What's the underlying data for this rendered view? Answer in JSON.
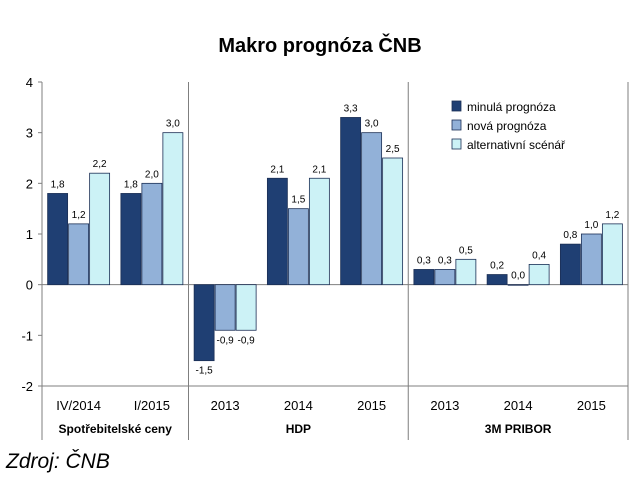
{
  "chart_data": {
    "type": "bar",
    "title": "Makro prognóza ČNB",
    "ylim": [
      -2,
      4
    ],
    "yticks": [
      "-2",
      "-1",
      "0",
      "1",
      "2",
      "3",
      "4"
    ],
    "categories": [
      "IV/2014",
      "I/2015",
      "2013",
      "2014",
      "2015",
      "2013",
      "2014",
      "2015"
    ],
    "groups": [
      {
        "label": "Spotřebitelské ceny",
        "categories": [
          0,
          1
        ]
      },
      {
        "label": "HDP",
        "categories": [
          2,
          3,
          4
        ]
      },
      {
        "label": "3M PRIBOR",
        "categories": [
          5,
          6,
          7
        ]
      }
    ],
    "series": [
      {
        "name": "minulá prognóza",
        "color": "#1f3f73",
        "values": [
          1.8,
          1.8,
          -1.5,
          2.1,
          3.3,
          0.3,
          0.2,
          0.8
        ],
        "labels": [
          "1,8",
          "1,8",
          "-1,5",
          "2,1",
          "3,3",
          "0,3",
          "0,2",
          "0,8"
        ]
      },
      {
        "name": "nová prognóza",
        "color": "#92b1d8",
        "values": [
          1.2,
          2.0,
          -0.9,
          1.5,
          3.0,
          0.3,
          0.0,
          1.0
        ],
        "labels": [
          "1,2",
          "2,0",
          "-0,9",
          "1,5",
          "3,0",
          "0,3",
          "0,0",
          "1,0"
        ]
      },
      {
        "name": "alternativní scénář",
        "color": "#ccf2f6",
        "values": [
          2.2,
          3.0,
          -0.9,
          2.1,
          2.5,
          0.5,
          0.4,
          1.2
        ],
        "labels": [
          "2,2",
          "3,0",
          "-0,9",
          "2,1",
          "2,5",
          "0,5",
          "0,4",
          "1,2"
        ]
      }
    ],
    "legend": "top-right",
    "grid": false
  },
  "source": "Zdroj: ČNB"
}
